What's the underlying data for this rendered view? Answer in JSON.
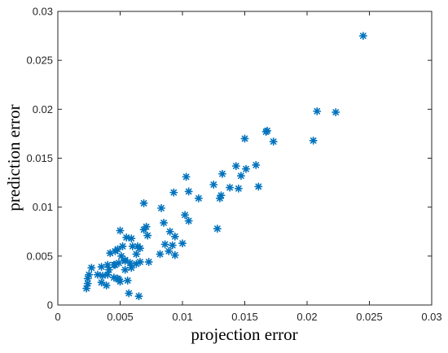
{
  "chart_data": {
    "type": "scatter",
    "xlabel": "projection error",
    "ylabel": "prediction error",
    "xlim": [
      0,
      0.03
    ],
    "ylim": [
      0,
      0.03
    ],
    "x_ticks": [
      "0",
      "0.005",
      "0.01",
      "0.015",
      "0.02",
      "0.025",
      "0.03"
    ],
    "y_ticks": [
      "0",
      "0.005",
      "0.01",
      "0.015",
      "0.02",
      "0.025",
      "0.03"
    ],
    "grid": false,
    "legend": "none",
    "marker": "asterisk",
    "color": "#0072BD",
    "series": [
      {
        "x": [
          0.0245,
          0.0208,
          0.0223,
          0.0205,
          0.0168,
          0.0167,
          0.0173,
          0.015,
          0.0159,
          0.0143,
          0.0151,
          0.0147,
          0.0161,
          0.0132,
          0.0138,
          0.0131,
          0.013,
          0.0125,
          0.0145,
          0.0103,
          0.0105,
          0.0093,
          0.0113,
          0.0128,
          0.0069,
          0.0083,
          0.0102,
          0.0085,
          0.0105,
          0.009,
          0.0071,
          0.0069,
          0.0072,
          0.0094,
          0.0059,
          0.0055,
          0.005,
          0.006,
          0.0064,
          0.0066,
          0.0042,
          0.0048,
          0.0086,
          0.0092,
          0.0089,
          0.0082,
          0.0094,
          0.01,
          0.0073,
          0.0066,
          0.0063,
          0.0058,
          0.0054,
          0.0049,
          0.0046,
          0.0045,
          0.004,
          0.0035,
          0.0046,
          0.0051,
          0.0054,
          0.0059,
          0.0041,
          0.0036,
          0.0032,
          0.0027,
          0.0024,
          0.0048,
          0.004,
          0.0056,
          0.0065,
          0.0057,
          0.0054,
          0.0023,
          0.0024,
          0.0025,
          0.0035,
          0.0039,
          0.0045,
          0.0049,
          0.005,
          0.0052,
          0.0063
        ],
        "y": [
          0.0275,
          0.0198,
          0.0197,
          0.0168,
          0.0178,
          0.0177,
          0.0167,
          0.017,
          0.0143,
          0.0142,
          0.0139,
          0.0132,
          0.0121,
          0.0134,
          0.012,
          0.0112,
          0.0109,
          0.0123,
          0.0119,
          0.0131,
          0.0116,
          0.0115,
          0.0109,
          0.0078,
          0.0104,
          0.0099,
          0.0092,
          0.0084,
          0.0086,
          0.0075,
          0.008,
          0.0077,
          0.0071,
          0.007,
          0.0068,
          0.0069,
          0.0076,
          0.006,
          0.006,
          0.0058,
          0.0053,
          0.0057,
          0.0062,
          0.0061,
          0.0055,
          0.0052,
          0.0051,
          0.0063,
          0.0044,
          0.0044,
          0.0042,
          0.0043,
          0.0046,
          0.0043,
          0.0041,
          0.0041,
          0.0041,
          0.0039,
          0.0055,
          0.005,
          0.0045,
          0.0038,
          0.0036,
          0.003,
          0.0031,
          0.0038,
          0.0027,
          0.0027,
          0.0031,
          0.0025,
          0.0009,
          0.0012,
          0.0036,
          0.0017,
          0.0022,
          0.0031,
          0.0023,
          0.002,
          0.0028,
          0.0026,
          0.0024,
          0.006,
          0.0052
        ]
      }
    ]
  }
}
